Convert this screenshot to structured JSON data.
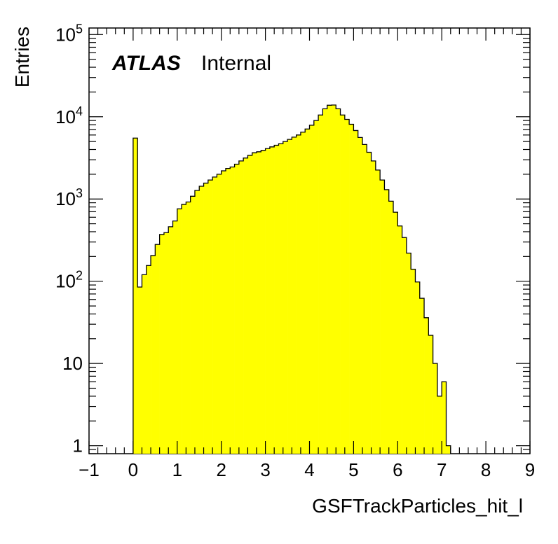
{
  "chart_data": {
    "type": "histogram",
    "title": "",
    "xlabel": "GSFTrackParticles_hit_l",
    "ylabel": "Entries",
    "xlim": [
      -1,
      9
    ],
    "ylim": [
      0.8,
      120000
    ],
    "yscale": "log",
    "grid": false,
    "fill_color": "#ffff00",
    "edge_color": "#000000",
    "annotation": {
      "experiment": "ATLAS",
      "status": "Internal"
    },
    "x_ticks": [
      "−1",
      "0",
      "1",
      "2",
      "3",
      "4",
      "5",
      "6",
      "7",
      "8",
      "9"
    ],
    "y_ticks": [
      {
        "value": 1,
        "base": "1",
        "exp": ""
      },
      {
        "value": 10,
        "base": "10",
        "exp": ""
      },
      {
        "value": 100,
        "base": "10",
        "exp": "2"
      },
      {
        "value": 1000,
        "base": "10",
        "exp": "3"
      },
      {
        "value": 10000,
        "base": "10",
        "exp": "4"
      },
      {
        "value": 100000,
        "base": "10",
        "exp": "5"
      }
    ],
    "bins": {
      "start": 0,
      "width": 0.1,
      "counts": [
        5500,
        85,
        120,
        155,
        205,
        280,
        370,
        390,
        460,
        540,
        760,
        860,
        920,
        1080,
        1270,
        1430,
        1560,
        1700,
        1850,
        2000,
        2200,
        2350,
        2450,
        2650,
        2900,
        3150,
        3400,
        3650,
        3750,
        3900,
        4100,
        4300,
        4500,
        4700,
        5000,
        5300,
        5650,
        6000,
        6500,
        7100,
        7900,
        9000,
        10500,
        12500,
        13800,
        13900,
        12500,
        10500,
        9300,
        8100,
        6800,
        5600,
        4600,
        3700,
        2900,
        2250,
        1700,
        1300,
        940,
        690,
        470,
        340,
        220,
        140,
        98,
        62,
        36,
        22,
        10,
        4,
        6,
        1
      ]
    }
  }
}
